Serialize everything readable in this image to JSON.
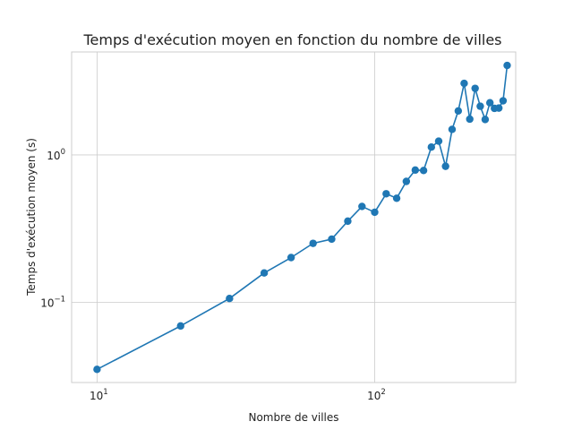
{
  "chart_data": {
    "type": "line",
    "title": "Temps d'exécution moyen en fonction du nombre de villes",
    "xlabel": "Nombre de villes",
    "ylabel": "Temps d'exécution moyen (s)",
    "x_scale": "log",
    "y_scale": "log",
    "xlim": [
      8.1,
      322
    ],
    "ylim": [
      0.0285,
      5.0
    ],
    "grid": true,
    "x_ticks": [
      {
        "base": "10",
        "exp": "1",
        "value": 10
      },
      {
        "base": "10",
        "exp": "2",
        "value": 100
      }
    ],
    "y_ticks": [
      {
        "base": "10",
        "exp": "−1",
        "value": 0.1
      },
      {
        "base": "10",
        "exp": "0",
        "value": 1
      }
    ],
    "series": [
      {
        "color": "#1f77b4",
        "marker": "circle",
        "x": [
          10,
          20,
          30,
          40,
          50,
          60,
          70,
          80,
          90,
          100,
          110,
          120,
          130,
          140,
          150,
          160,
          170,
          180,
          190,
          200,
          210,
          220,
          230,
          240,
          250,
          260,
          270,
          280,
          290,
          300
        ],
        "y": [
          0.035,
          0.069,
          0.106,
          0.158,
          0.201,
          0.251,
          0.268,
          0.355,
          0.447,
          0.408,
          0.545,
          0.508,
          0.661,
          0.789,
          0.784,
          1.13,
          1.24,
          0.837,
          1.49,
          1.99,
          3.06,
          1.75,
          2.83,
          2.14,
          1.74,
          2.26,
          2.07,
          2.08,
          2.33,
          4.05
        ]
      }
    ]
  }
}
